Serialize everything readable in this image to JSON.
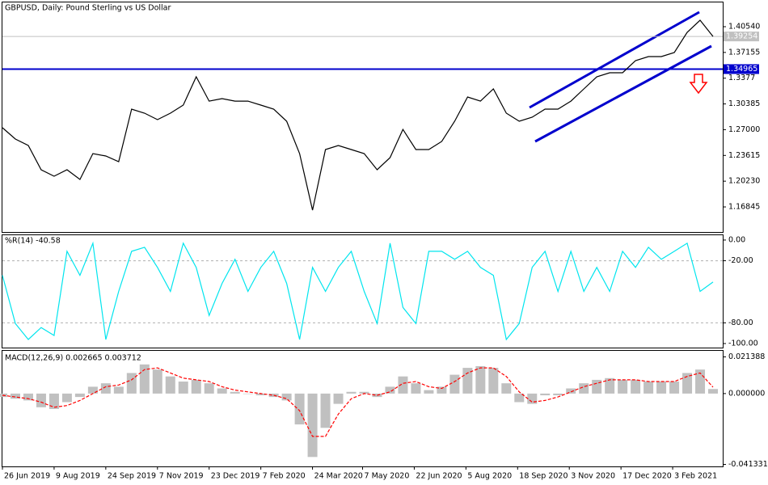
{
  "chart_data": [
    {
      "type": "line",
      "title": "GBPUSD, Daily:  Pound Sterling vs US Dollar",
      "xlim": [
        0,
        446
      ],
      "x": [
        0,
        8,
        16,
        24,
        32,
        40,
        48,
        56,
        64,
        72,
        80,
        88,
        96,
        104,
        112,
        120,
        128,
        136,
        144,
        152,
        160,
        168,
        176,
        184,
        192,
        200,
        208,
        216,
        224,
        232,
        240,
        248,
        256,
        264,
        272,
        280,
        288,
        296,
        304,
        312,
        320,
        328,
        336,
        344,
        352,
        360,
        368,
        376,
        384,
        392,
        400,
        408,
        416,
        424,
        432,
        440
      ],
      "series": [
        {
          "color": "#000000",
          "values": [
            1.2726,
            1.2577,
            1.2492,
            1.2173,
            1.2088,
            1.2173,
            1.2046,
            1.2386,
            1.2354,
            1.2279,
            1.297,
            1.2917,
            1.2832,
            1.2917,
            1.3023,
            1.3395,
            1.3076,
            1.3108,
            1.3076,
            1.3076,
            1.3023,
            1.297,
            1.2811,
            1.2386,
            1.1642,
            1.2439,
            1.2492,
            1.2439,
            1.2386,
            1.2173,
            1.2333,
            1.2704,
            1.2439,
            1.2439,
            1.2545,
            1.2811,
            1.313,
            1.3076,
            1.3236,
            1.2917,
            1.2811,
            1.2864,
            1.297,
            1.297,
            1.3076,
            1.3236,
            1.3395,
            1.3448,
            1.3448,
            1.3608,
            1.3661,
            1.3661,
            1.3714,
            1.398,
            1.4139,
            1.3926
          ]
        }
      ],
      "ylim": [
        1.1355,
        1.4373
      ],
      "yticks": [
        {
          "value": 1.4054,
          "label": "1.40540"
        },
        1.37155,
        1.3377,
        1.30385,
        {
          "value": 1.27,
          "label": "1.27000"
        },
        1.23615,
        {
          "value": 1.2023,
          "label": "1.20230"
        },
        1.16845
      ],
      "hline": {
        "value": 1.34965,
        "color": "#0000cd"
      },
      "last_price": {
        "value": 1.39254,
        "color": "#c0c0c0"
      }
    },
    {
      "type": "line",
      "title": "%R(14) -40.58",
      "xlim": [
        0,
        446
      ],
      "x": [
        0,
        8,
        16,
        24,
        32,
        40,
        48,
        56,
        64,
        72,
        80,
        88,
        96,
        104,
        112,
        120,
        128,
        136,
        144,
        152,
        160,
        168,
        176,
        184,
        192,
        200,
        208,
        216,
        224,
        232,
        240,
        248,
        256,
        264,
        272,
        280,
        288,
        296,
        304,
        312,
        320,
        328,
        336,
        344,
        352,
        360,
        368,
        376,
        384,
        392,
        400,
        408,
        416,
        424,
        432,
        440
      ],
      "series": [
        {
          "color": "#00e5ee",
          "values": [
            -34.1,
            -80.6,
            -96.1,
            -84.5,
            -92.2,
            -10.9,
            -34.1,
            -3.1,
            -96.1,
            -49.6,
            -10.9,
            -7.0,
            -26.4,
            -49.6,
            -3.1,
            -26.4,
            -72.9,
            -41.9,
            -18.6,
            -49.6,
            -26.4,
            -10.9,
            -41.9,
            -96.1,
            -26.4,
            -49.6,
            -26.4,
            -10.9,
            -49.6,
            -80.6,
            -3.1,
            -65.1,
            -80.6,
            -10.9,
            -10.9,
            -18.6,
            -10.9,
            -26.4,
            -34.1,
            -96.1,
            -80.6,
            -26.4,
            -10.9,
            -49.6,
            -10.9,
            -49.6,
            -26.4,
            -49.6,
            -10.9,
            -26.4,
            -7.0,
            -18.6,
            -10.9,
            -3.1,
            -49.6,
            -40.58
          ]
        }
      ],
      "ylim": [
        -103.9,
        4.65
      ],
      "yticks": [
        {
          "value": 0,
          "label": "0.00"
        },
        {
          "value": -20,
          "label": "-20.00"
        },
        {
          "value": -80,
          "label": "-80.00"
        },
        {
          "value": -100,
          "label": "-100.00"
        }
      ],
      "levels": [
        -20,
        -80
      ]
    },
    {
      "type": "bar",
      "title": "MACD(12,26,9) 0.002665 0.003712",
      "xlim": [
        0,
        446
      ],
      "x": [
        0,
        8,
        16,
        24,
        32,
        40,
        48,
        56,
        64,
        72,
        80,
        88,
        96,
        104,
        112,
        120,
        128,
        136,
        144,
        152,
        160,
        168,
        176,
        184,
        192,
        200,
        208,
        216,
        224,
        232,
        240,
        248,
        256,
        264,
        272,
        280,
        288,
        296,
        304,
        312,
        320,
        328,
        336,
        344,
        352,
        360,
        368,
        376,
        384,
        392,
        400,
        408,
        416,
        424,
        432,
        440
      ],
      "series": [
        {
          "color": "#c0c0c0",
          "style": "histogram",
          "values": [
            -0.002,
            -0.003,
            -0.004,
            -0.008,
            -0.009,
            -0.005,
            -0.002,
            0.004,
            0.006,
            0.004,
            0.012,
            0.017,
            0.014,
            0.01,
            0.007,
            0.008,
            0.006,
            0.003,
            0.001,
            0.0,
            -0.001,
            -0.002,
            -0.004,
            -0.018,
            -0.037,
            -0.02,
            -0.006,
            0.001,
            0.001,
            -0.002,
            0.004,
            0.01,
            0.006,
            0.002,
            0.004,
            0.011,
            0.015,
            0.016,
            0.015,
            0.006,
            -0.005,
            -0.006,
            -0.001,
            -0.001,
            0.003,
            0.006,
            0.008,
            0.009,
            0.008,
            0.008,
            0.007,
            0.007,
            0.007,
            0.012,
            0.014,
            0.002665
          ]
        },
        {
          "color": "#ff0000",
          "style": "dashed",
          "values": [
            -0.001,
            -0.002,
            -0.003,
            -0.005,
            -0.008,
            -0.007,
            -0.004,
            0.0,
            0.004,
            0.005,
            0.008,
            0.014,
            0.015,
            0.012,
            0.009,
            0.008,
            0.007,
            0.004,
            0.002,
            0.001,
            0.0,
            -0.001,
            -0.003,
            -0.01,
            -0.025,
            -0.025,
            -0.012,
            -0.003,
            0.0,
            -0.001,
            0.001,
            0.006,
            0.007,
            0.004,
            0.003,
            0.007,
            0.012,
            0.015,
            0.015,
            0.01,
            0.001,
            -0.005,
            -0.004,
            -0.002,
            0.001,
            0.004,
            0.006,
            0.008,
            0.008,
            0.008,
            0.007,
            0.007,
            0.007,
            0.01,
            0.012,
            0.003712
          ]
        }
      ],
      "ylim": [
        -0.0425,
        0.024
      ],
      "yticks": [
        0.021388,
        {
          "value": 0,
          "label": "0.000000"
        },
        -0.041331
      ],
      "xticks": [
        {
          "value": 0,
          "label": "26 Jun 2019"
        },
        {
          "value": 32,
          "label": "9 Aug 2019"
        },
        {
          "value": 64,
          "label": "24 Sep 2019"
        },
        {
          "value": 96,
          "label": "7 Nov 2019"
        },
        {
          "value": 128,
          "label": "23 Dec 2019"
        },
        {
          "value": 160,
          "label": "7 Feb 2020"
        },
        {
          "value": 192,
          "label": "24 Mar 2020"
        },
        {
          "value": 223,
          "label": "7 May 2020"
        },
        {
          "value": 255,
          "label": "22 Jun 2020"
        },
        {
          "value": 287,
          "label": "5 Aug 2020"
        },
        {
          "value": 319,
          "label": "18 Sep 2020"
        },
        {
          "value": 351,
          "label": "3 Nov 2020"
        },
        {
          "value": 383,
          "label": "17 Dec 2020"
        },
        {
          "value": 415,
          "label": "3 Feb 2021"
        }
      ]
    }
  ]
}
